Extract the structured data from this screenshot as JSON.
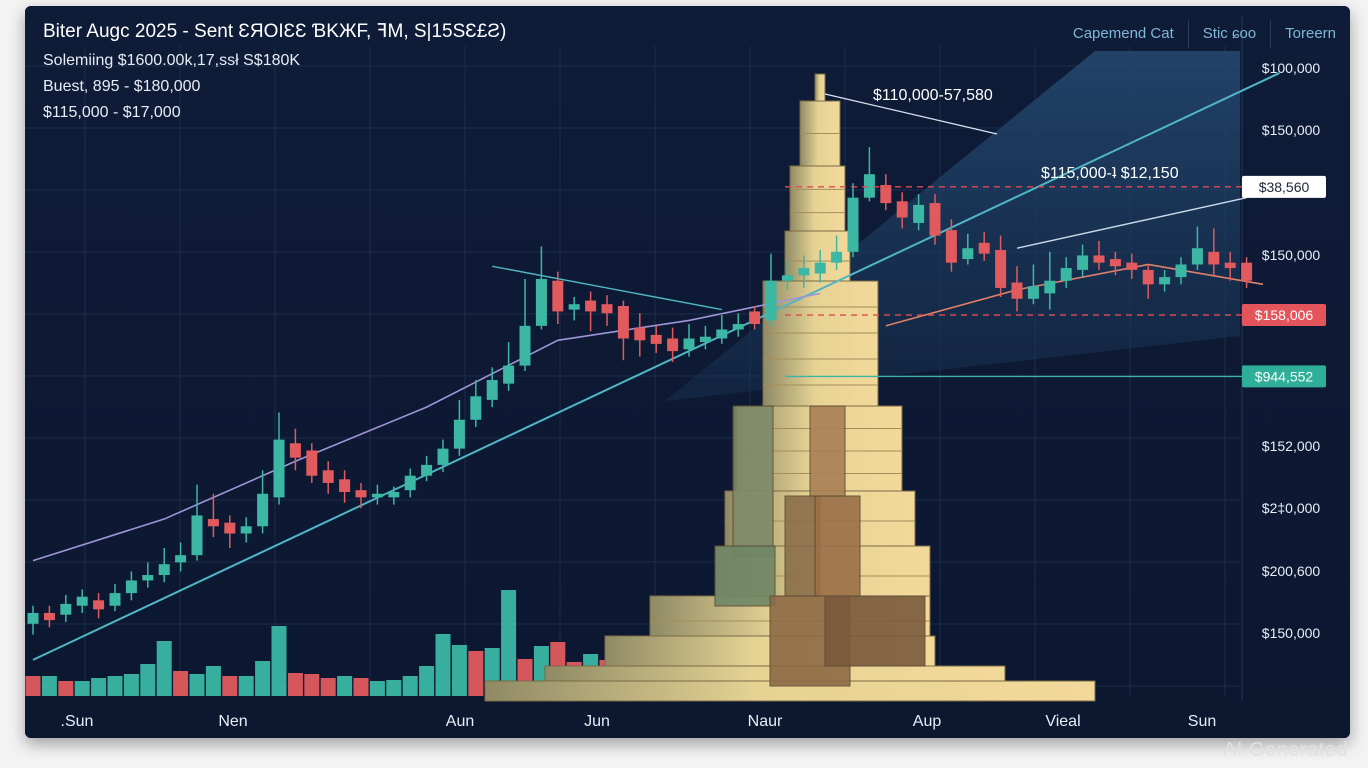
{
  "header": {
    "title": "Biter Augc 2025 - Sent ƐЯOIƐƐ ƁKЖF, ꟻM, S|15SƐ£Ƨ)",
    "sub1": "Solemiing $1600.00k,17,ssł S$180K",
    "sub2": "Buest, 895 - $180,000",
    "sub3": "$115,000 - $17,000"
  },
  "tabs": [
    "Capemend Cat",
    "Stic ɕoo",
    "Toreern"
  ],
  "watermark": "AI Generated",
  "colors": {
    "background": "#0e1a33",
    "up": "#3bb7a4",
    "down": "#e05a5e",
    "trend": "#4fb6c6",
    "ma_purple": "#9e95d6",
    "ma_orange": "#e0806a"
  },
  "chart_data": {
    "type": "candlestick",
    "title": "Biter Augc 2025 - Sent ƐЯOIƐƐ ƁKЖF, ꟻM, S|15SƐ£Ƨ)",
    "x_tick_labels": [
      ".Sun",
      "Nen",
      "Aun",
      "Jun",
      "Naur",
      "Aup",
      "Vieal",
      "Sun"
    ],
    "y_tick_labels": [
      "$100,000",
      "$150,000",
      "$150,000",
      "$152,000",
      "$2‡0,000",
      "$200,600",
      "$150,000"
    ],
    "price_tags": [
      {
        "label": "$38,560",
        "style": "white",
        "value": 28.2
      },
      {
        "label": "$158,006",
        "style": "red",
        "value": 21.1
      },
      {
        "label": "$944,552",
        "style": "teal",
        "value": 17.7
      }
    ],
    "annotations": [
      "$110,000-57,580",
      "$115,000-ʇ $12,150"
    ],
    "y_range": [
      0,
      36
    ],
    "candles": [
      {
        "o": 4.0,
        "c": 4.6,
        "h": 5.0,
        "l": 3.4
      },
      {
        "o": 4.6,
        "c": 4.2,
        "h": 5.0,
        "l": 3.8
      },
      {
        "o": 4.5,
        "c": 5.1,
        "h": 5.6,
        "l": 4.1
      },
      {
        "o": 5.0,
        "c": 5.5,
        "h": 5.9,
        "l": 4.6
      },
      {
        "o": 5.3,
        "c": 4.8,
        "h": 5.7,
        "l": 4.3
      },
      {
        "o": 5.0,
        "c": 5.7,
        "h": 6.2,
        "l": 4.7
      },
      {
        "o": 5.7,
        "c": 6.4,
        "h": 6.9,
        "l": 5.3
      },
      {
        "o": 6.4,
        "c": 6.7,
        "h": 7.4,
        "l": 6.0
      },
      {
        "o": 6.7,
        "c": 7.3,
        "h": 8.2,
        "l": 6.3
      },
      {
        "o": 7.4,
        "c": 7.8,
        "h": 8.5,
        "l": 6.9
      },
      {
        "o": 7.8,
        "c": 10.0,
        "h": 11.7,
        "l": 7.5
      },
      {
        "o": 9.8,
        "c": 9.4,
        "h": 11.2,
        "l": 8.8
      },
      {
        "o": 9.6,
        "c": 9.0,
        "h": 10.0,
        "l": 8.2
      },
      {
        "o": 9.0,
        "c": 9.4,
        "h": 9.9,
        "l": 8.5
      },
      {
        "o": 9.4,
        "c": 11.2,
        "h": 12.5,
        "l": 9.0
      },
      {
        "o": 11.0,
        "c": 14.2,
        "h": 15.7,
        "l": 10.6
      },
      {
        "o": 14.0,
        "c": 13.2,
        "h": 14.8,
        "l": 12.5
      },
      {
        "o": 13.6,
        "c": 12.2,
        "h": 14.0,
        "l": 11.8
      },
      {
        "o": 12.5,
        "c": 11.8,
        "h": 13.0,
        "l": 11.2
      },
      {
        "o": 12.0,
        "c": 11.3,
        "h": 12.5,
        "l": 10.7
      },
      {
        "o": 11.4,
        "c": 11.0,
        "h": 11.8,
        "l": 10.4
      },
      {
        "o": 11.0,
        "c": 11.2,
        "h": 11.7,
        "l": 10.6
      },
      {
        "o": 11.0,
        "c": 11.3,
        "h": 11.6,
        "l": 10.6
      },
      {
        "o": 11.4,
        "c": 12.2,
        "h": 12.6,
        "l": 11.0
      },
      {
        "o": 12.2,
        "c": 12.8,
        "h": 13.3,
        "l": 11.9
      },
      {
        "o": 12.8,
        "c": 13.7,
        "h": 14.2,
        "l": 12.4
      },
      {
        "o": 13.7,
        "c": 15.3,
        "h": 16.4,
        "l": 13.3
      },
      {
        "o": 15.3,
        "c": 16.6,
        "h": 17.5,
        "l": 14.9
      },
      {
        "o": 16.4,
        "c": 17.5,
        "h": 18.2,
        "l": 16.0
      },
      {
        "o": 17.3,
        "c": 18.3,
        "h": 19.6,
        "l": 16.9
      },
      {
        "o": 18.3,
        "c": 20.5,
        "h": 23.1,
        "l": 18.0
      },
      {
        "o": 20.5,
        "c": 23.1,
        "h": 24.9,
        "l": 20.3
      },
      {
        "o": 23.0,
        "c": 21.3,
        "h": 23.5,
        "l": 20.6
      },
      {
        "o": 21.4,
        "c": 21.7,
        "h": 22.1,
        "l": 20.8
      },
      {
        "o": 21.9,
        "c": 21.3,
        "h": 22.4,
        "l": 20.2
      },
      {
        "o": 21.7,
        "c": 21.2,
        "h": 22.2,
        "l": 20.5
      },
      {
        "o": 21.6,
        "c": 19.8,
        "h": 21.9,
        "l": 18.6
      },
      {
        "o": 20.4,
        "c": 19.7,
        "h": 21.2,
        "l": 18.8
      },
      {
        "o": 20.0,
        "c": 19.5,
        "h": 20.5,
        "l": 19.0
      },
      {
        "o": 19.8,
        "c": 19.1,
        "h": 20.4,
        "l": 18.5
      },
      {
        "o": 19.2,
        "c": 19.8,
        "h": 20.6,
        "l": 18.8
      },
      {
        "o": 19.6,
        "c": 19.9,
        "h": 20.5,
        "l": 19.2
      },
      {
        "o": 19.8,
        "c": 20.3,
        "h": 21.1,
        "l": 19.5
      },
      {
        "o": 20.3,
        "c": 20.6,
        "h": 21.2,
        "l": 19.9
      },
      {
        "o": 21.3,
        "c": 20.6,
        "h": 21.6,
        "l": 20.3
      },
      {
        "o": 20.8,
        "c": 23.0,
        "h": 24.5,
        "l": 20.5
      },
      {
        "o": 23.0,
        "c": 23.3,
        "h": 24.2,
        "l": 22.5
      },
      {
        "o": 23.3,
        "c": 23.7,
        "h": 24.4,
        "l": 22.6
      },
      {
        "o": 23.4,
        "c": 24.0,
        "h": 24.7,
        "l": 22.9
      },
      {
        "o": 24.0,
        "c": 24.6,
        "h": 25.5,
        "l": 23.6
      },
      {
        "o": 24.6,
        "c": 27.6,
        "h": 28.4,
        "l": 24.3
      },
      {
        "o": 27.6,
        "c": 28.9,
        "h": 30.4,
        "l": 27.4
      },
      {
        "o": 28.3,
        "c": 27.3,
        "h": 28.9,
        "l": 26.9
      },
      {
        "o": 27.4,
        "c": 26.5,
        "h": 27.9,
        "l": 25.9
      },
      {
        "o": 26.2,
        "c": 27.2,
        "h": 27.8,
        "l": 25.8
      },
      {
        "o": 27.3,
        "c": 25.5,
        "h": 27.8,
        "l": 25.0
      },
      {
        "o": 25.8,
        "c": 24.0,
        "h": 26.4,
        "l": 23.5
      },
      {
        "o": 24.2,
        "c": 24.8,
        "h": 25.6,
        "l": 23.9
      },
      {
        "o": 25.1,
        "c": 24.5,
        "h": 25.7,
        "l": 24.1
      },
      {
        "o": 24.7,
        "c": 22.6,
        "h": 25.5,
        "l": 22.1
      },
      {
        "o": 22.9,
        "c": 22.0,
        "h": 23.8,
        "l": 21.3
      },
      {
        "o": 22.0,
        "c": 22.7,
        "h": 23.9,
        "l": 21.7
      },
      {
        "o": 22.3,
        "c": 23.0,
        "h": 24.6,
        "l": 21.4
      },
      {
        "o": 23.0,
        "c": 23.7,
        "h": 24.3,
        "l": 22.6
      },
      {
        "o": 23.6,
        "c": 24.4,
        "h": 25.0,
        "l": 23.2
      },
      {
        "o": 24.4,
        "c": 24.0,
        "h": 25.2,
        "l": 23.6
      },
      {
        "o": 24.2,
        "c": 23.8,
        "h": 24.6,
        "l": 23.3
      },
      {
        "o": 24.0,
        "c": 23.6,
        "h": 24.5,
        "l": 23.1
      },
      {
        "o": 23.6,
        "c": 22.8,
        "h": 23.9,
        "l": 22.0
      },
      {
        "o": 22.8,
        "c": 23.2,
        "h": 23.6,
        "l": 22.4
      },
      {
        "o": 23.2,
        "c": 23.9,
        "h": 24.3,
        "l": 22.8
      },
      {
        "o": 23.9,
        "c": 24.8,
        "h": 26.0,
        "l": 23.6
      },
      {
        "o": 24.6,
        "c": 23.9,
        "h": 25.9,
        "l": 23.3
      },
      {
        "o": 24.0,
        "c": 23.7,
        "h": 24.6,
        "l": 23.0
      },
      {
        "o": 24.0,
        "c": 23.0,
        "h": 24.3,
        "l": 22.6
      }
    ],
    "volumes": [
      2,
      2,
      1.5,
      1.5,
      1.8,
      2,
      2.2,
      3.2,
      5.5,
      2.5,
      2.2,
      3,
      2,
      2,
      3.5,
      7,
      2.3,
      2.2,
      1.8,
      2,
      1.8,
      1.5,
      1.6,
      2,
      3,
      6.2,
      5.1,
      4.5,
      4.8,
      10.6,
      3.7,
      5,
      5.4,
      3.4,
      4.2,
      3.6
    ],
    "volume_up": [
      false,
      true,
      false,
      true,
      true,
      true,
      true,
      true,
      true,
      false,
      true,
      true,
      false,
      true,
      true,
      true,
      false,
      false,
      false,
      true,
      false,
      true,
      true,
      true,
      true,
      true,
      true,
      false,
      true,
      true,
      false,
      true,
      false,
      false,
      true,
      false
    ],
    "ma_purple": [
      [
        0,
        7.5
      ],
      [
        8,
        9.8
      ],
      [
        16,
        13.0
      ],
      [
        24,
        16.0
      ],
      [
        32,
        19.7
      ],
      [
        40,
        20.8
      ],
      [
        48,
        22.3
      ]
    ],
    "ma_orange": [
      [
        52,
        20.5
      ],
      [
        60,
        22.5
      ],
      [
        68,
        23.9
      ],
      [
        75,
        22.8
      ]
    ],
    "trend_line": [
      [
        0,
        2.0
      ],
      [
        76,
        34.5
      ]
    ],
    "trend_upper": [
      [
        60,
        24.8
      ],
      [
        74,
        27.6
      ]
    ],
    "channel_line": [
      [
        28,
        23.8
      ],
      [
        42,
        21.4
      ]
    ]
  }
}
